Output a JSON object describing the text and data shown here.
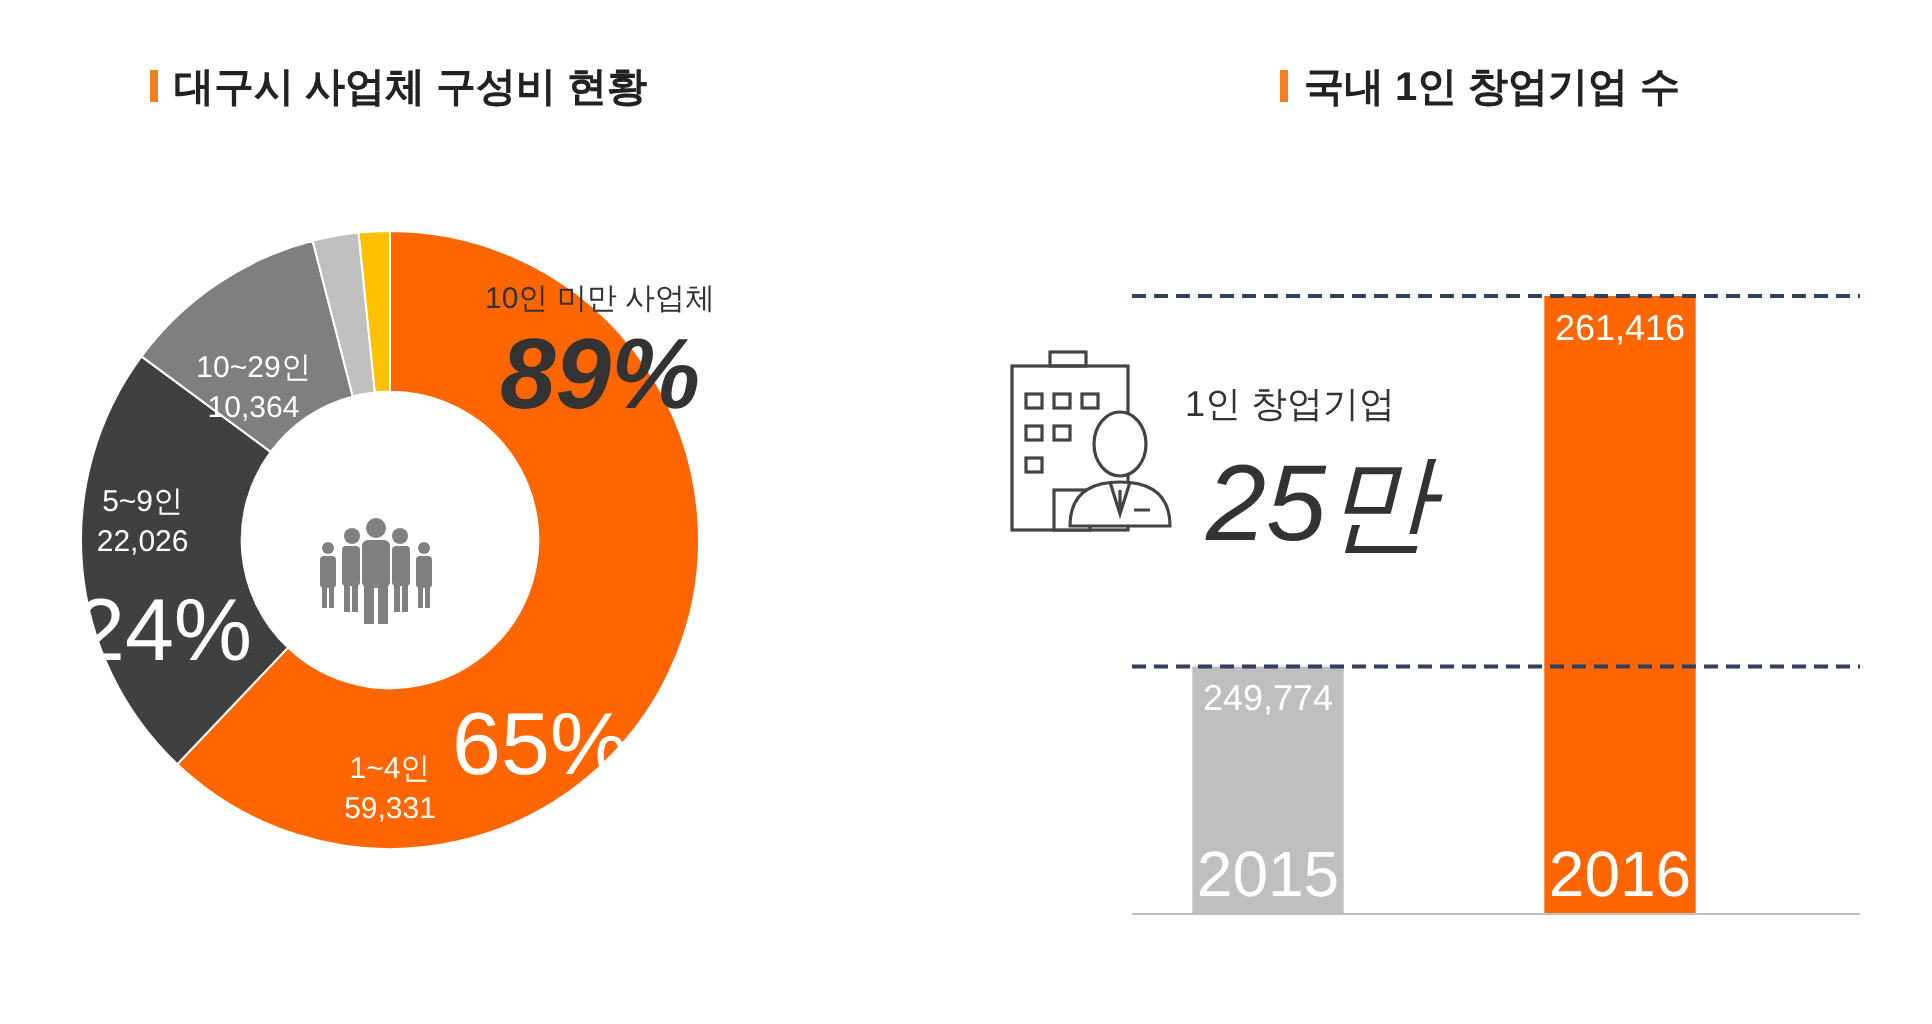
{
  "chart_data": [
    {
      "type": "donut",
      "title": "대구시 사업체 구성비 현황",
      "categories": [
        "1~4인",
        "5~9인",
        "10~29인",
        null,
        null
      ],
      "values": [
        59331,
        22026,
        10364,
        2300,
        1550
      ],
      "value_labels": [
        "59,331",
        "22,026",
        "10,364",
        null,
        null
      ],
      "colors": [
        "#ff6600",
        "#404040",
        "#7f7f7f",
        "#bfbfbf",
        "#ffc000"
      ],
      "annotations": [
        "10인 미만 사업체",
        "89%",
        "65%",
        "24%"
      ],
      "legend": false
    },
    {
      "type": "bar",
      "title": "국내 1인 창업기업 수",
      "categories": [
        "2015",
        "2016"
      ],
      "values": [
        249774,
        261416
      ],
      "colors": [
        "#bfbfbf",
        "#ff6600"
      ],
      "ylim": [
        242000,
        261416
      ],
      "value_labels": [
        "249,774",
        "261,416"
      ],
      "tick_labels": "x",
      "ref_lines": [
        {
          "axis": "y",
          "value": 261416,
          "line_style": "dashed",
          "color": "#2f3f5f"
        },
        {
          "axis": "y",
          "value": 249774,
          "line_style": "dashed",
          "color": "#2f3f5f"
        }
      ],
      "annotations": [
        "1인 창업기업",
        "25만"
      ],
      "legend": false
    }
  ]
}
